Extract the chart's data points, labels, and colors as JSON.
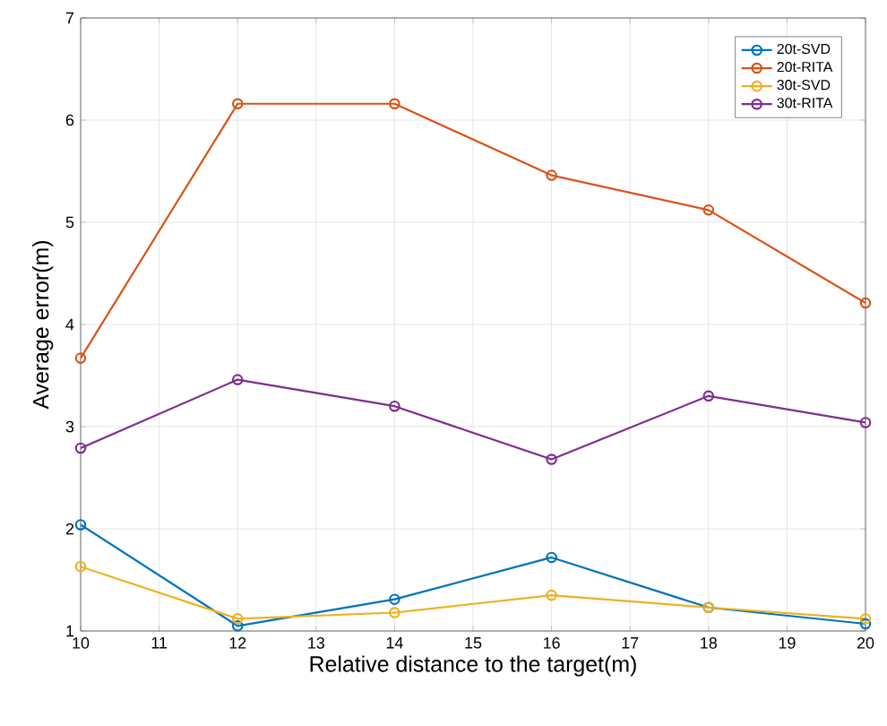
{
  "chart_data": {
    "type": "line",
    "xlabel": "Relative distance to the target(m)",
    "ylabel": "Average error(m)",
    "x": [
      10,
      12,
      14,
      16,
      18,
      20
    ],
    "series": [
      {
        "name": "20t-SVD",
        "color": "#0072bd",
        "values": [
          2.04,
          1.05,
          1.31,
          1.72,
          1.23,
          1.07
        ]
      },
      {
        "name": "20t-RITA",
        "color": "#d95319",
        "values": [
          3.67,
          6.16,
          6.16,
          5.46,
          5.12,
          4.21
        ]
      },
      {
        "name": "30t-SVD",
        "color": "#edb120",
        "values": [
          1.63,
          1.12,
          1.18,
          1.35,
          1.23,
          1.12
        ]
      },
      {
        "name": "30t-RITA",
        "color": "#7e2f8e",
        "values": [
          2.79,
          3.46,
          3.2,
          2.68,
          3.3,
          3.04
        ]
      }
    ],
    "xlim": [
      10,
      20
    ],
    "ylim": [
      1,
      7
    ],
    "xticks": [
      10,
      11,
      12,
      13,
      14,
      15,
      16,
      17,
      18,
      19,
      20
    ],
    "yticks": [
      1,
      2,
      3,
      4,
      5,
      6,
      7
    ],
    "grid": true,
    "legend": "top right",
    "marker": "circle",
    "line_style": "solid"
  }
}
